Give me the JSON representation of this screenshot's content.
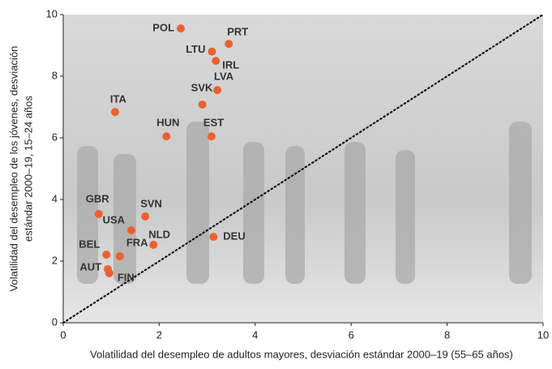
{
  "chart_data": {
    "type": "scatter",
    "xlabel": "Volatilidad del desempleo de adultos mayores, desviación estándar 2000–19 (55–65 años)",
    "ylabel": [
      "Volatilidad del desempleo de los jóvenes, desviación",
      "estándar 2000–19, 15–24 años"
    ],
    "labels": [
      "POL",
      "PRT",
      "LTU",
      "IRL",
      "LVA",
      "SVK",
      "ITA",
      "HUN",
      "EST",
      "GBR",
      "SVN",
      "USA",
      "DEU",
      "NLD",
      "BEL",
      "FRA",
      "AUT",
      "FIN"
    ],
    "x": [
      2.45,
      3.45,
      3.1,
      3.18,
      3.21,
      2.9,
      1.08,
      2.15,
      3.09,
      0.74,
      1.71,
      1.42,
      3.13,
      1.88,
      0.9,
      1.18,
      0.93,
      0.96
    ],
    "y": [
      9.55,
      9.05,
      8.8,
      8.5,
      7.55,
      7.08,
      6.84,
      6.05,
      6.05,
      3.53,
      3.45,
      3.0,
      2.79,
      2.53,
      2.21,
      2.16,
      1.74,
      1.61
    ],
    "color": "#ea6130",
    "xlim": [
      0,
      10
    ],
    "ylim": [
      0,
      10
    ],
    "xticks": [
      0,
      2,
      4,
      6,
      8,
      10
    ],
    "yticks": [
      0,
      2,
      4,
      6,
      8,
      10
    ],
    "diagonal": true
  }
}
